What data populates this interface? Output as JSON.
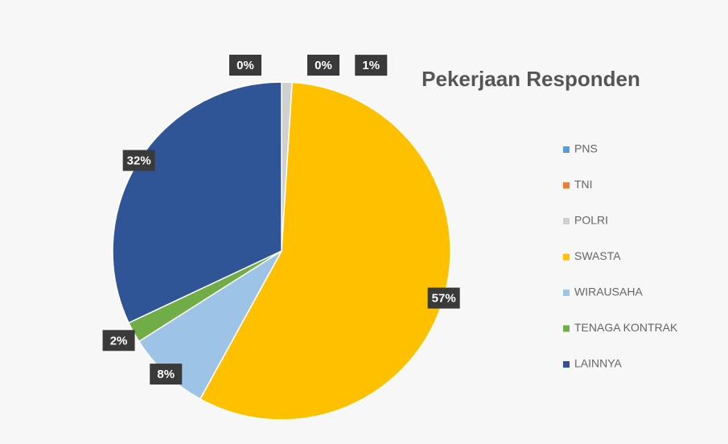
{
  "chart_data": {
    "type": "pie",
    "title": "Pekerjaan Responden",
    "categories": [
      "PNS",
      "TNI",
      "POLRI",
      "SWASTA",
      "WIRAUSAHA",
      "TENAGA KONTRAK",
      "LAINNYA"
    ],
    "values": [
      0,
      0,
      1,
      57,
      8,
      2,
      32
    ],
    "value_labels": [
      "0%",
      "0%",
      "1%",
      "57%",
      "8%",
      "2%",
      "32%"
    ],
    "colors": [
      "#5b9bd5",
      "#ed7d31",
      "#d0d0d0",
      "#ffc000",
      "#9dc3e6",
      "#70ad47",
      "#2f5597"
    ],
    "legend": "right"
  }
}
